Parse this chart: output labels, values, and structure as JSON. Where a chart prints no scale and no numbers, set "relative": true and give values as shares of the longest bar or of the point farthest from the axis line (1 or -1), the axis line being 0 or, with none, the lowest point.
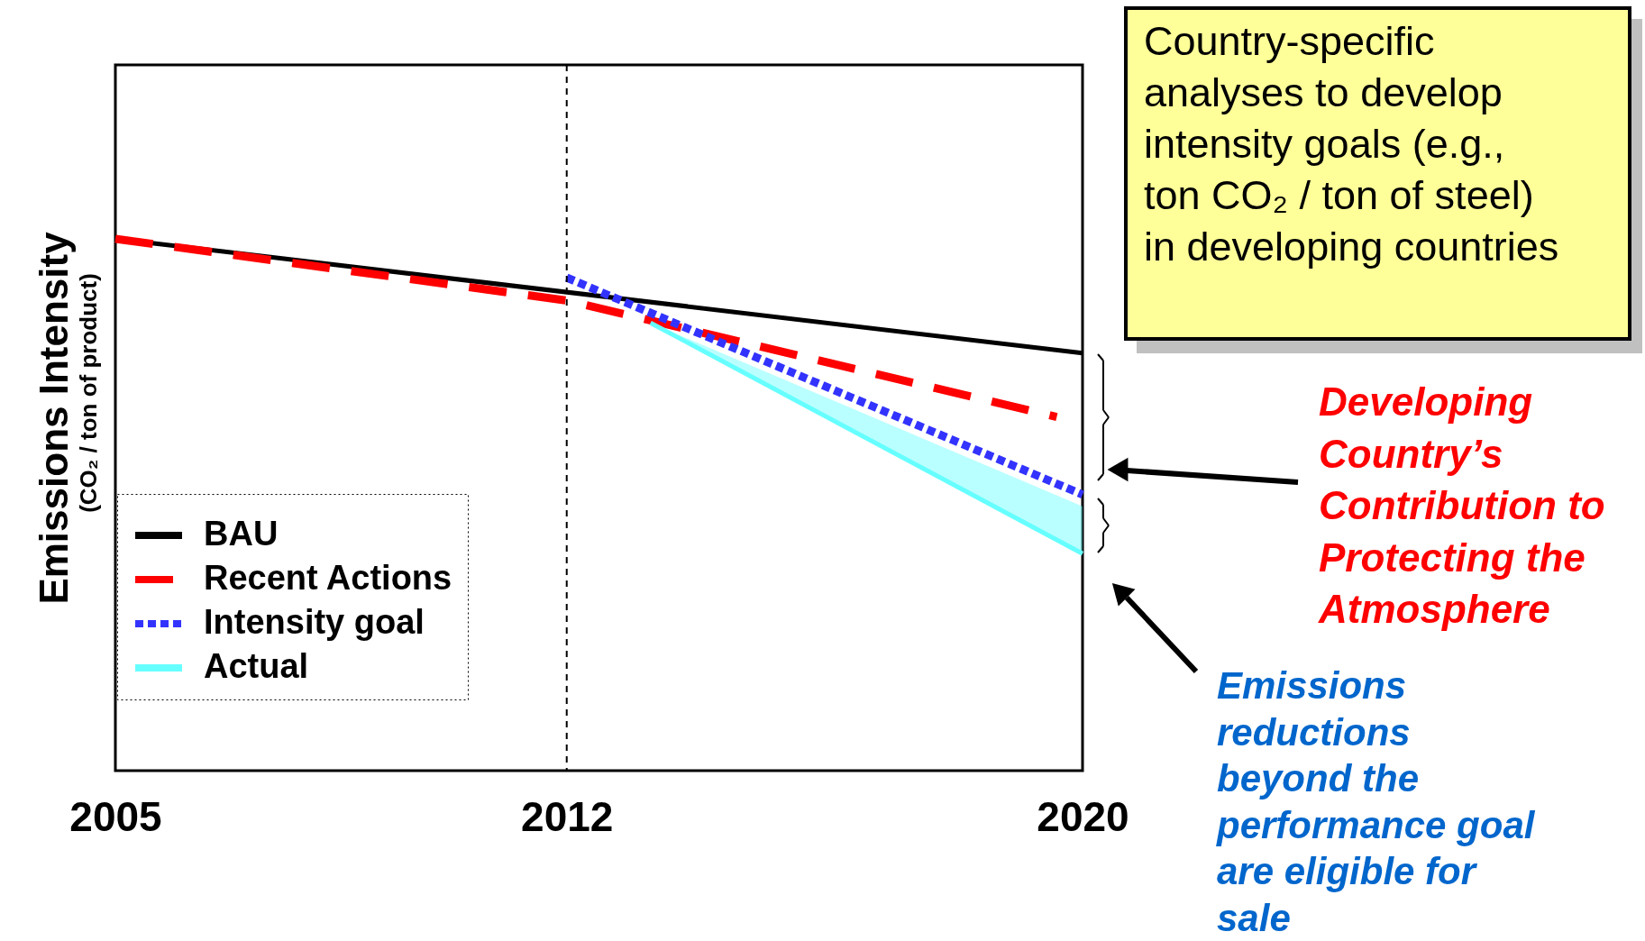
{
  "chart_data": {
    "type": "line",
    "relative": true,
    "ylabel": "Emissions Intensity",
    "xlim": [
      2005,
      2020
    ],
    "xticks": [
      2005,
      2012,
      2020
    ],
    "grid": false,
    "legend": "bottom left",
    "series": [
      {
        "name": "BAU",
        "color": "#000000",
        "line_style": "solid",
        "x": [
          2005,
          2020
        ],
        "values": [
          1.0,
          0.785
        ]
      },
      {
        "name": "Recent Actions",
        "color": "#ff0000",
        "line_style": "dashed",
        "x": [
          2005,
          2012,
          2019.6
        ],
        "values": [
          1.0,
          0.884,
          0.665
        ]
      },
      {
        "name": "Intensity goal",
        "color": "#3333ff",
        "line_style": "dotted",
        "x": [
          2012,
          2020
        ],
        "values": [
          0.927,
          0.519
        ]
      },
      {
        "name": "Actual",
        "color": "#66ffff",
        "line_style": "solid",
        "x": [
          2013.3,
          2020
        ],
        "values": [
          0.842,
          0.408
        ],
        "lower": [
          0.842,
          0.408
        ],
        "upper": [
          0.842,
          0.497
        ]
      }
    ],
    "ref_lines": [
      {
        "axis": "x",
        "value": 2012,
        "line_style": "dashed",
        "color": "#000000"
      }
    ],
    "annotations": [
      "(CO₂ / ton of product)",
      "Country-specific analyses to develop intensity goals (e.g., ton CO₂ / ton of steel) in developing countries",
      "Developing Country’s Contribution to Protecting the Atmosphere",
      "Emissions reductions beyond the performance goal are eligible for sale"
    ]
  }
}
